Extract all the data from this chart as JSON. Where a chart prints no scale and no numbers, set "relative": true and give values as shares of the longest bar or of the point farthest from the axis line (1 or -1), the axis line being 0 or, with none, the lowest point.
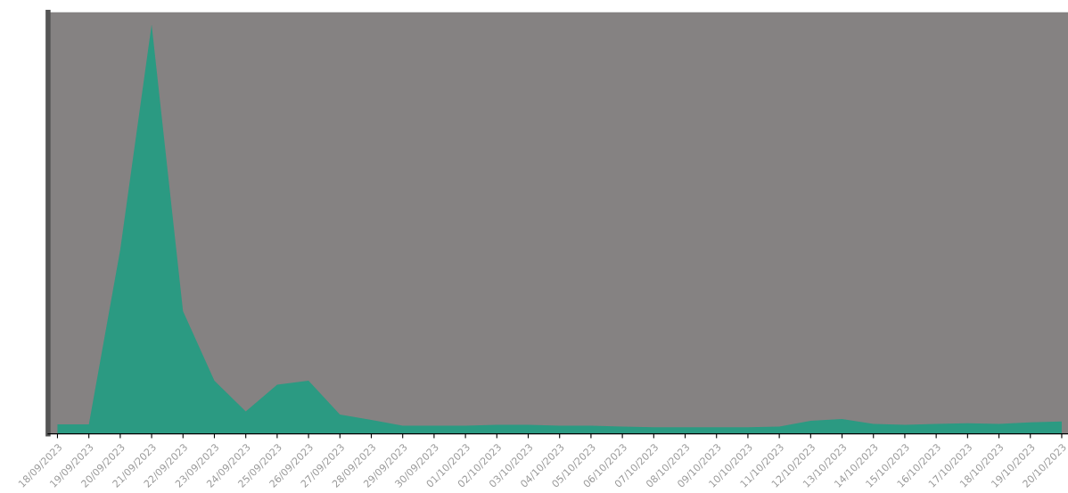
{
  "chart_data": {
    "type": "area",
    "relative": true,
    "categories": [
      "18/09/2023",
      "19/09/2023",
      "20/09/2023",
      "21/09/2023",
      "22/09/2023",
      "23/09/2023",
      "24/09/2023",
      "25/09/2023",
      "26/09/2023",
      "27/09/2023",
      "28/09/2023",
      "29/09/2023",
      "30/09/2023",
      "01/10/2023",
      "02/10/2023",
      "03/10/2023",
      "04/10/2023",
      "05/10/2023",
      "06/10/2023",
      "07/10/2023",
      "08/10/2023",
      "09/10/2023",
      "10/10/2023",
      "11/10/2023",
      "12/10/2023",
      "13/10/2023",
      "14/10/2023",
      "15/10/2023",
      "16/10/2023",
      "17/10/2023",
      "18/10/2023",
      "19/10/2023",
      "20/10/2023"
    ],
    "series": [
      {
        "color": "#2b9a82",
        "values": [
          0.023,
          0.023,
          0.45,
          1.0,
          0.3,
          0.13,
          0.055,
          0.12,
          0.13,
          0.047,
          0.034,
          0.02,
          0.02,
          0.02,
          0.022,
          0.022,
          0.02,
          0.02,
          0.018,
          0.016,
          0.016,
          0.016,
          0.016,
          0.018,
          0.032,
          0.036,
          0.024,
          0.022,
          0.024,
          0.026,
          0.024,
          0.028,
          0.03
        ]
      }
    ],
    "grid": false,
    "legend": false
  }
}
